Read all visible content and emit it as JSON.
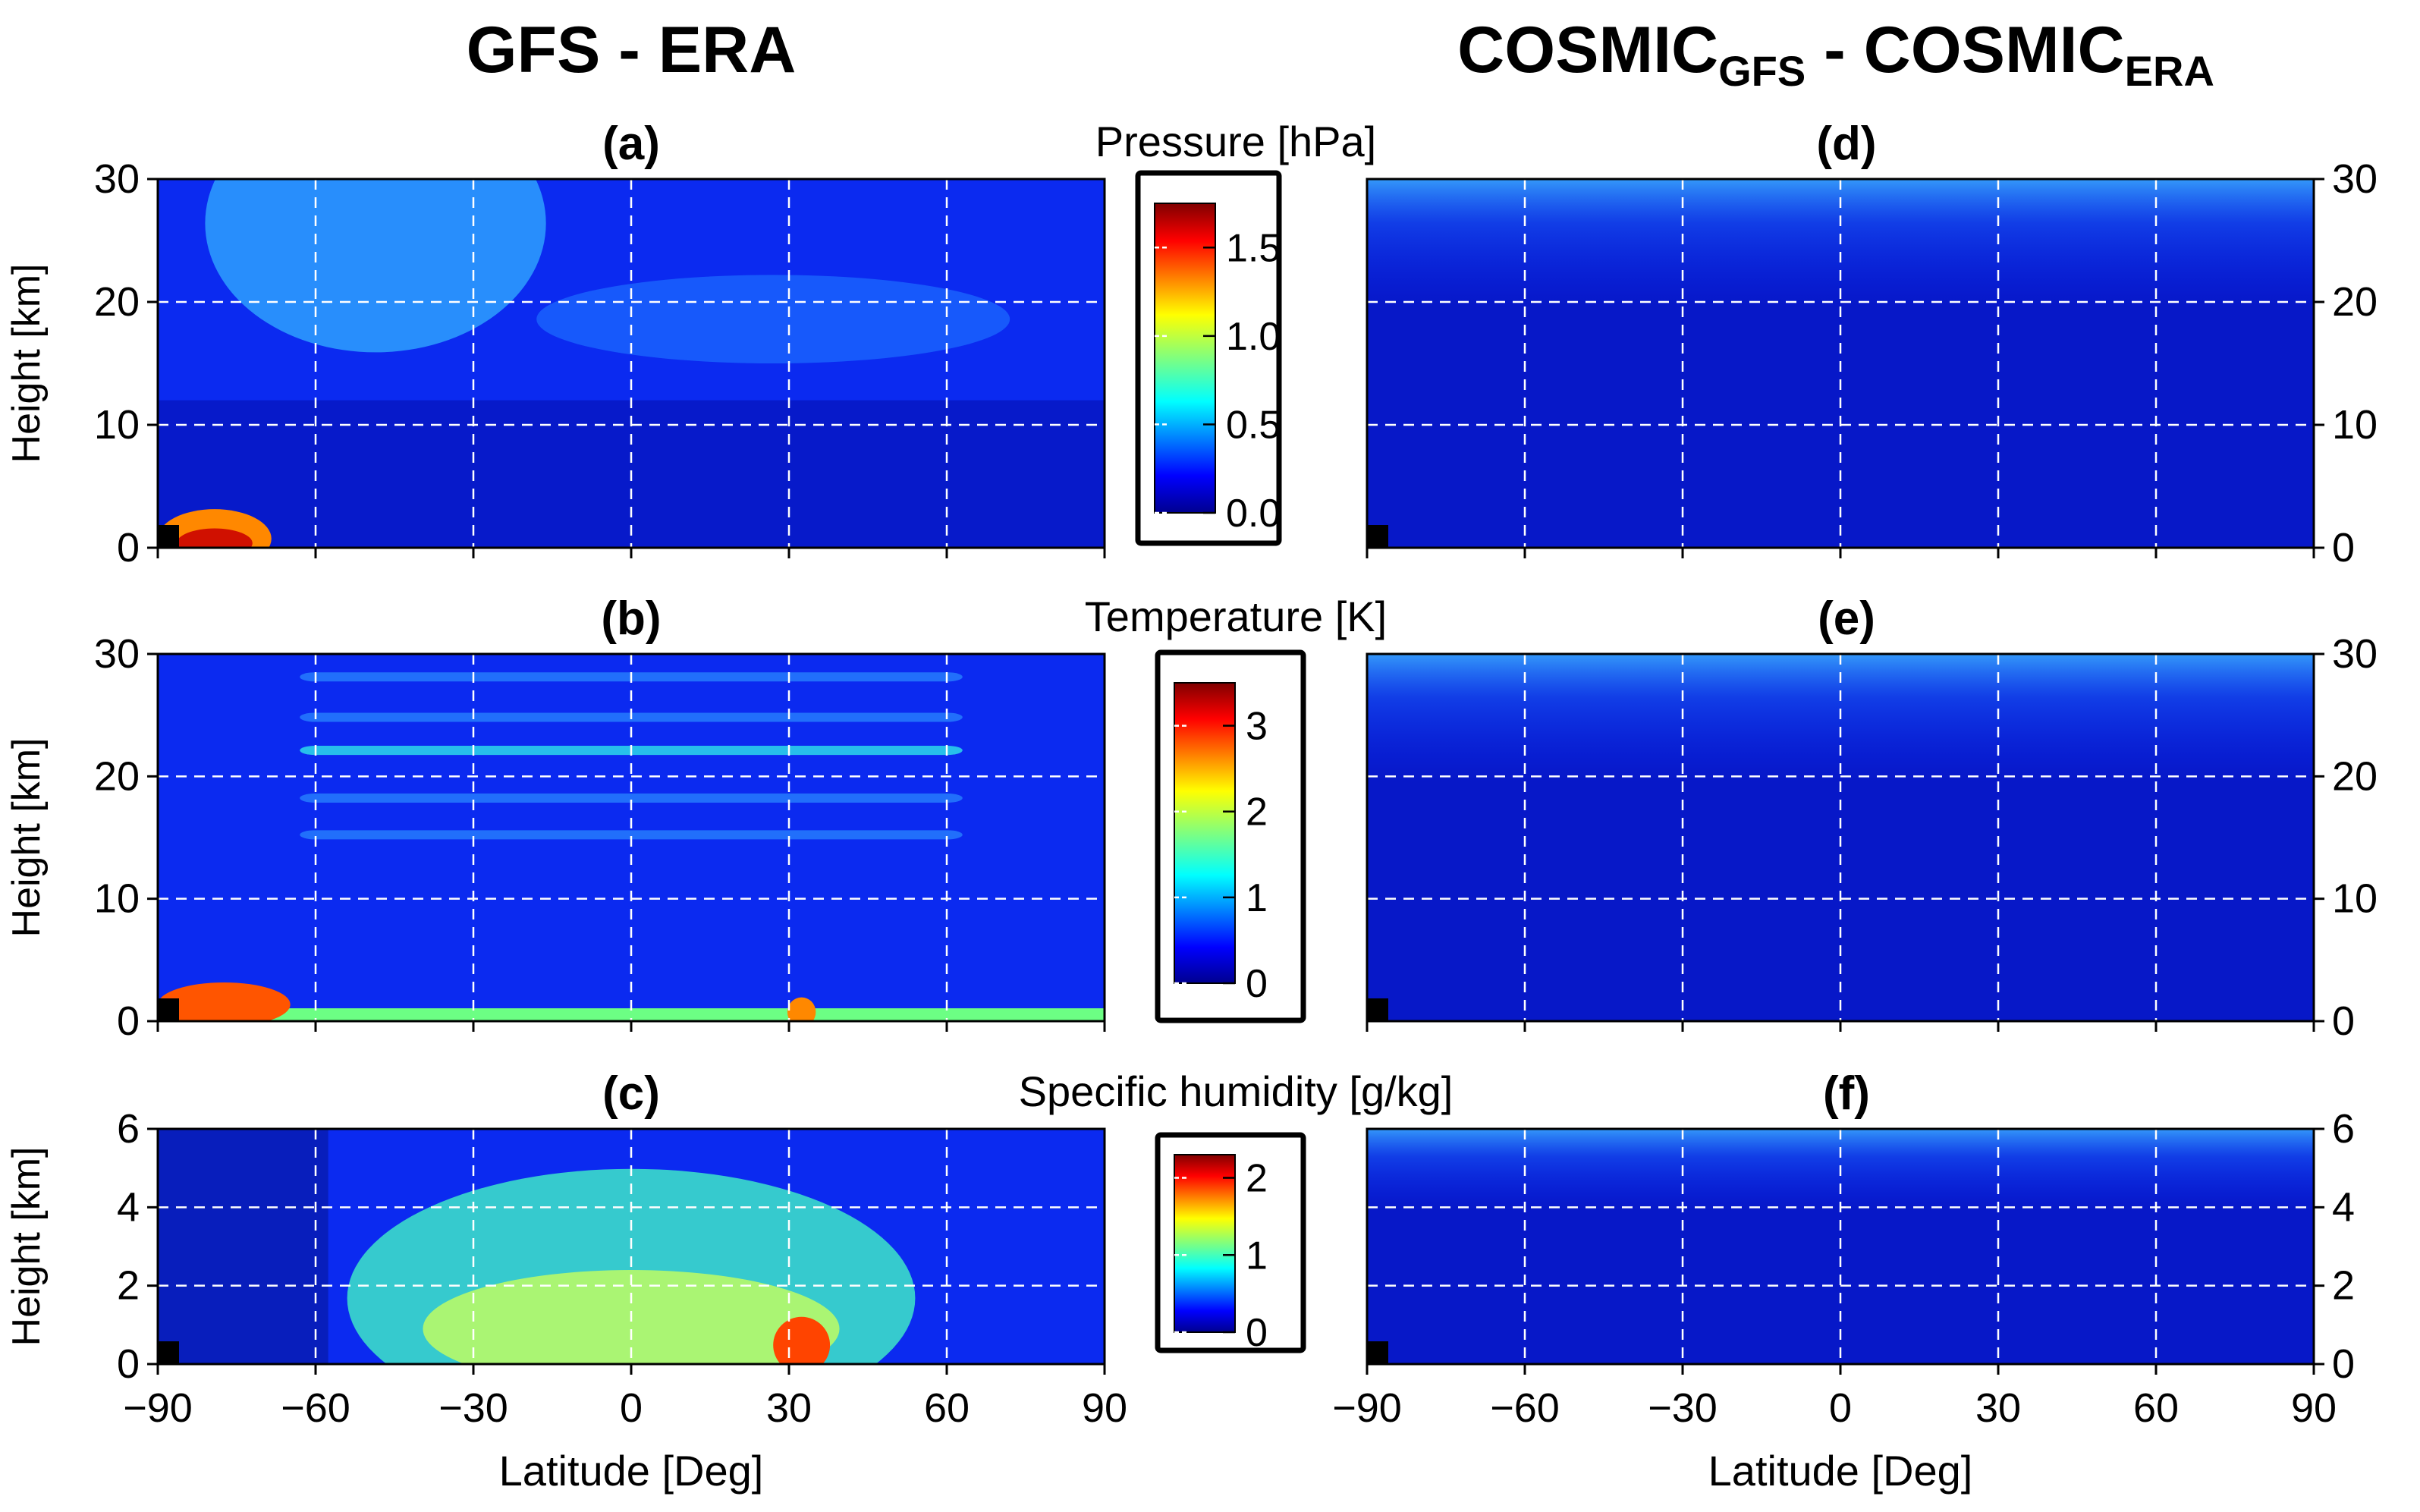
{
  "chart_data": {
    "type": "heatmap",
    "column_titles": [
      {
        "text": "GFS - ERA",
        "sub": []
      },
      {
        "text": "",
        "parts": [
          {
            "text": "COSMIC",
            "sub": false
          },
          {
            "text": "GFS",
            "sub": true
          },
          {
            "text": " - COSMIC",
            "sub": false
          },
          {
            "text": "ERA",
            "sub": true
          }
        ]
      }
    ],
    "xlabel": "Latitude [Deg]",
    "xlim": [
      -90,
      90
    ],
    "xticks": [
      -90,
      -60,
      -30,
      0,
      30,
      60,
      90
    ],
    "xtick_labels": [
      "−90",
      "−60",
      "−30",
      "0",
      "30",
      "60",
      "90"
    ],
    "grid": true,
    "rows": [
      {
        "quantity": "Pressure [hPa]",
        "ylabel": "Height [km]",
        "ylim": [
          0,
          30
        ],
        "yticks": [
          0,
          10,
          20,
          30
        ],
        "colorbar": {
          "min": 0.0,
          "max": 1.75,
          "ticks": [
            0.0,
            0.5,
            1.0,
            1.5
          ],
          "tick_labels": [
            "0.0",
            "0.5",
            "1.0",
            "1.5"
          ]
        },
        "panels": [
          {
            "label": "(a)",
            "column": "GFS - ERA"
          },
          {
            "label": "(d)",
            "column": "COSMIC_GFS - COSMIC_ERA"
          }
        ]
      },
      {
        "quantity": "Temperature [K]",
        "ylabel": "Height [km]",
        "ylim": [
          0,
          30
        ],
        "yticks": [
          0,
          10,
          20,
          30
        ],
        "colorbar": {
          "min": 0,
          "max": 3.5,
          "ticks": [
            0,
            1,
            2,
            3
          ],
          "tick_labels": [
            "0",
            "1",
            "2",
            "3"
          ]
        },
        "panels": [
          {
            "label": "(b)",
            "column": "GFS - ERA"
          },
          {
            "label": "(e)",
            "column": "COSMIC_GFS - COSMIC_ERA"
          }
        ]
      },
      {
        "quantity": "Specific humidity [g/kg]",
        "ylabel": "Height [km]",
        "ylim": [
          0,
          6
        ],
        "yticks": [
          0,
          2,
          4,
          6
        ],
        "colorbar": {
          "min": 0,
          "max": 2.3,
          "ticks": [
            0,
            1,
            2
          ],
          "tick_labels": [
            "0",
            "1",
            "2"
          ]
        },
        "panels": [
          {
            "label": "(c)",
            "column": "GFS - ERA"
          },
          {
            "label": "(f)",
            "column": "COSMIC_GFS - COSMIC_ERA"
          }
        ]
      }
    ]
  }
}
